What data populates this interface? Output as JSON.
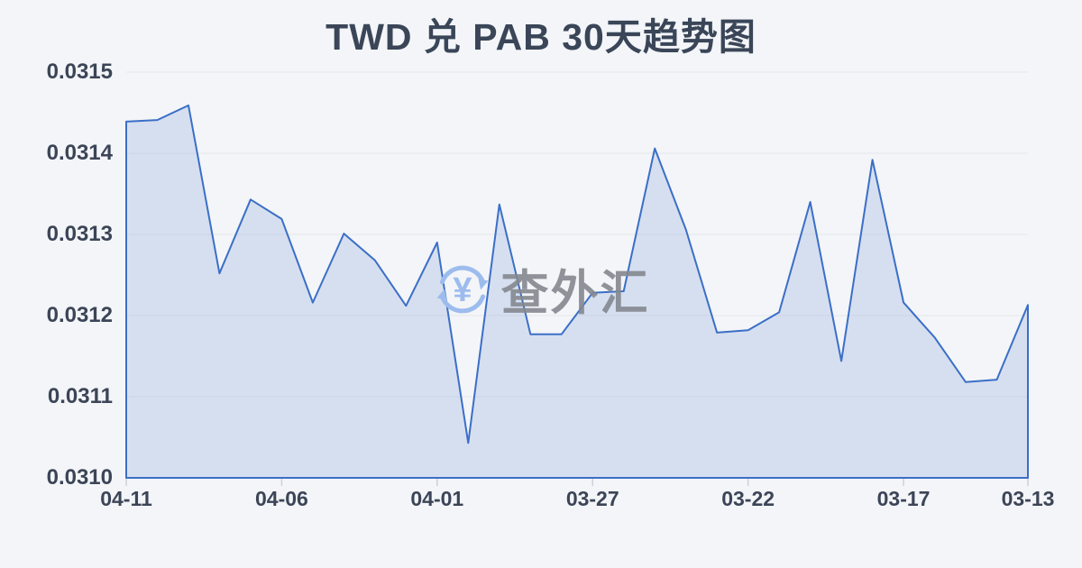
{
  "page": {
    "background": "#f3f5f8"
  },
  "title": {
    "text": "TWD 兑 PAB 30天趋势图",
    "color": "#3a4658"
  },
  "watermark": {
    "text": "查外汇",
    "icon": "yuan-exchange-cycle-icon",
    "icon_color": "#9dbcee",
    "text_color": "#85888f"
  },
  "chart_data": {
    "type": "area",
    "title": "TWD 兑 PAB 30天趋势图",
    "description": "TWD to PAB exchange rate, 30-day trend, newest date on the left",
    "x": [
      "04-11",
      "04-10",
      "04-09",
      "04-08",
      "04-07",
      "04-06",
      "04-05",
      "04-04",
      "04-03",
      "04-02",
      "04-01",
      "03-31",
      "03-30",
      "03-29",
      "03-28",
      "03-27",
      "03-26",
      "03-25",
      "03-24",
      "03-23",
      "03-22",
      "03-21",
      "03-20",
      "03-19",
      "03-18",
      "03-17",
      "03-16",
      "03-15",
      "03-14",
      "03-13"
    ],
    "values": [
      0.031439,
      0.031441,
      0.031459,
      0.031252,
      0.031343,
      0.031319,
      0.031216,
      0.031301,
      0.031268,
      0.031212,
      0.03129,
      0.031043,
      0.031337,
      0.031177,
      0.031177,
      0.031228,
      0.03123,
      0.031406,
      0.031306,
      0.031179,
      0.031182,
      0.031204,
      0.03134,
      0.031144,
      0.031392,
      0.031216,
      0.031173,
      0.031118,
      0.031121,
      0.031213
    ],
    "x_ticks": [
      {
        "index": 0,
        "label": "04-11"
      },
      {
        "index": 5,
        "label": "04-06"
      },
      {
        "index": 10,
        "label": "04-01"
      },
      {
        "index": 15,
        "label": "03-27"
      },
      {
        "index": 20,
        "label": "03-22"
      },
      {
        "index": 25,
        "label": "03-17"
      },
      {
        "index": 29,
        "label": "03-13"
      }
    ],
    "y_tick_labels": [
      "0.0315",
      "0.0314",
      "0.0313",
      "0.0312",
      "0.0311",
      "0.0310"
    ],
    "ylim": [
      0.031,
      0.0315
    ],
    "grid": "horizontal-only",
    "legend_position": "none",
    "line_color": "#3b6fc7",
    "fill_color": "rgba(61,111,199,0.16)",
    "grid_color": "#e4e7ec",
    "tick_color": "#ccd1d9",
    "axis_label_color": "#3c4557"
  }
}
